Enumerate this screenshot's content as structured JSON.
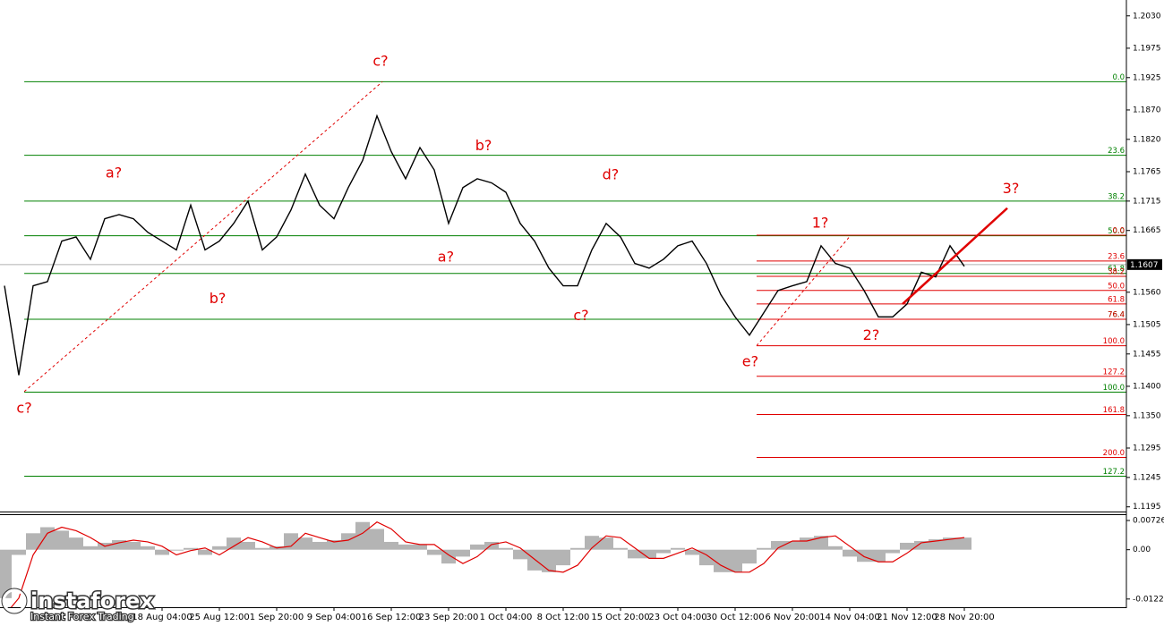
{
  "chart_data": [
    {
      "type": "line",
      "categories": [
        null,
        null,
        null,
        null,
        null,
        null,
        null,
        null,
        null,
        null,
        null,
        "18 Aug 04:00",
        null,
        null,
        null,
        "25 Aug 12:00",
        null,
        null,
        null,
        "1 Sep 20:00",
        null,
        null,
        null,
        "9 Sep 04:00",
        null,
        null,
        null,
        "16 Sep 12:00",
        null,
        null,
        null,
        "23 Sep 20:00",
        null,
        null,
        null,
        "1 Oct 04:00",
        null,
        null,
        null,
        "8 Oct 12:00",
        null,
        null,
        null,
        "15 Oct 20:00",
        null,
        null,
        null,
        "23 Oct 04:00",
        null,
        null,
        null,
        "30 Oct 12:00",
        null,
        null,
        null,
        "6 Nov 20:00",
        null,
        null,
        null,
        "14 Nov 04:00",
        null,
        null,
        null,
        "21 Nov 12:00",
        null,
        null,
        null,
        "28 Nov 20:00"
      ],
      "values": [
        1.1571,
        1.1419,
        1.1571,
        1.1578,
        1.1647,
        1.1654,
        1.1616,
        1.1685,
        1.1692,
        1.1685,
        1.1662,
        1.1647,
        1.1632,
        1.1708,
        1.1632,
        1.1647,
        1.1677,
        1.1715,
        1.1632,
        1.1654,
        1.17,
        1.1761,
        1.1708,
        1.1685,
        1.1738,
        1.1784,
        1.186,
        1.1799,
        1.1753,
        1.1806,
        1.1768,
        1.1677,
        1.1738,
        1.1753,
        1.1746,
        1.173,
        1.1677,
        1.1647,
        1.1601,
        1.1571,
        1.1571,
        1.1632,
        1.1677,
        1.1654,
        1.1609,
        1.1601,
        1.1616,
        1.1639,
        1.1647,
        1.1609,
        1.1556,
        1.1518,
        1.1487,
        1.1525,
        1.1563,
        1.1571,
        1.1578,
        1.1639,
        1.1609,
        1.1601,
        1.1563,
        1.1518,
        1.1518,
        1.154,
        1.1594,
        1.1586,
        1.1639,
        1.1604
      ],
      "color": "#000000",
      "ylim": [
        1.1187,
        1.2057
      ],
      "yticks": [
        {
          "value": 1.203,
          "label": "1.2030"
        },
        1.1975,
        1.1925,
        {
          "value": 1.187,
          "label": "1.1870"
        },
        {
          "value": 1.182,
          "label": "1.1820"
        },
        1.1765,
        1.1715,
        1.1665,
        {
          "value": 1.156,
          "label": "1.1560"
        },
        1.1505,
        1.1455,
        {
          "value": 1.14,
          "label": "1.1400"
        },
        {
          "value": 1.135,
          "label": "1.1350"
        },
        1.1295,
        1.1245,
        1.1195
      ],
      "current_price": 1.1607,
      "fib_levels": [
        {
          "color": "#008000",
          "start": 1.38,
          "levels": [
            {
              "label": "0.0",
              "value": 1.1918
            },
            {
              "label": "23.6",
              "value": 1.1793
            },
            {
              "label": "38.2",
              "value": 1.1715
            },
            {
              "label": "50.0",
              "value": 1.1656
            },
            {
              "label": "61.8",
              "value": 1.1592
            },
            {
              "label": "76.4",
              "value": 1.1514
            },
            {
              "label": "100.0",
              "value": 1.139
            },
            {
              "label": "127.2",
              "value": 1.1247
            }
          ]
        },
        {
          "color": "#e00000",
          "start": 52.5,
          "levels": [
            {
              "label": "0.0",
              "value": 1.1657
            },
            {
              "label": "23.6",
              "value": 1.1613
            },
            {
              "label": "38.2",
              "value": 1.1587
            },
            {
              "label": "50.0",
              "value": 1.1563
            },
            {
              "label": "61.8",
              "value": 1.154
            },
            {
              "label": "76.4",
              "value": 1.1514
            },
            {
              "label": "100.0",
              "value": 1.1469
            },
            {
              "label": "127.2",
              "value": 1.1417
            },
            {
              "label": "161.8",
              "value": 1.1352
            },
            {
              "label": "200.0",
              "value": 1.1279
            }
          ]
        }
      ],
      "lines": [
        {
          "color": "#e00000",
          "style": "dashed",
          "x": [
            1.38,
            26.38
          ],
          "values": [
            1.1391,
            1.1918
          ]
        },
        {
          "color": "#e00000",
          "style": "dashed",
          "x": [
            52.5,
            58.94
          ],
          "values": [
            1.1469,
            1.1653
          ]
        },
        {
          "color": "#e00000",
          "style": "solid",
          "x": [
            62.69,
            70
          ],
          "values": [
            1.154,
            1.1703
          ]
        }
      ],
      "annotation_color": "#e00000",
      "annotations": [
        {
          "text": "c?",
          "x": 1.38,
          "y": 1.1362
        },
        {
          "text": "a?",
          "x": 7.63,
          "y": 1.1762
        },
        {
          "text": "b?",
          "x": 14.88,
          "y": 1.1548
        },
        {
          "text": "c?",
          "x": 26.25,
          "y": 1.1952
        },
        {
          "text": "a?",
          "x": 30.81,
          "y": 1.1619
        },
        {
          "text": "b?",
          "x": 33.44,
          "y": 1.1808
        },
        {
          "text": "c?",
          "x": 40.25,
          "y": 1.1519
        },
        {
          "text": "d?",
          "x": 42.31,
          "y": 1.1759
        },
        {
          "text": "e?",
          "x": 52.06,
          "y": 1.1441
        },
        {
          "text": "1?",
          "x": 56.94,
          "y": 1.1677
        },
        {
          "text": "2?",
          "x": 60.5,
          "y": 1.1486
        },
        {
          "text": "3?",
          "x": 70.25,
          "y": 1.1735
        }
      ]
    },
    {
      "type": "bar",
      "values": [
        -0.01204,
        -0.00129,
        0.00409,
        0.00559,
        0.00473,
        0.00301,
        0.00086,
        0.00172,
        0.00237,
        0.00194,
        0.00086,
        -0.00129,
        -0.00022,
        0.00043,
        -0.00129,
        0.00086,
        0.00301,
        0.00194,
        0.00043,
        0.00086,
        0.00409,
        0.00301,
        0.00194,
        0.00237,
        0.00409,
        0.00688,
        0.00516,
        0.00194,
        0.00129,
        0.00129,
        -0.00129,
        -0.00344,
        -0.00172,
        0.00129,
        0.00194,
        0.00043,
        -0.00237,
        -0.00516,
        -0.00559,
        -0.00387,
        0.00043,
        0.00344,
        0.00301,
        0.00043,
        -0.00215,
        -0.00215,
        -0.00086,
        0.00043,
        -0.00129,
        -0.00387,
        -0.00559,
        -0.00559,
        -0.00344,
        0.00043,
        0.00215,
        0.00215,
        0.00301,
        0.00344,
        0.00086,
        -0.00172,
        -0.00301,
        -0.00301,
        -0.00086,
        0.00172,
        0.00215,
        0.00258,
        0.00301,
        0.00301
      ],
      "color": "#b4b4b4",
      "line_values": [
        -0.01634,
        -0.01204,
        -0.00129,
        0.00409,
        0.00559,
        0.00473,
        0.00301,
        0.00086,
        0.00172,
        0.00237,
        0.00194,
        0.00086,
        -0.00129,
        -0.00022,
        0.00043,
        -0.00129,
        0.00086,
        0.00301,
        0.00194,
        0.00043,
        0.00086,
        0.00409,
        0.00301,
        0.00194,
        0.00237,
        0.00409,
        0.00688,
        0.00516,
        0.00194,
        0.00129,
        0.00129,
        -0.00129,
        -0.00344,
        -0.00172,
        0.00129,
        0.00194,
        0.00043,
        -0.00237,
        -0.00516,
        -0.00559,
        -0.00387,
        0.00043,
        0.00344,
        0.00301,
        0.00043,
        -0.00215,
        -0.00215,
        -0.00086,
        0.00043,
        -0.00129,
        -0.00387,
        -0.00559,
        -0.00559,
        -0.00344,
        0.00043,
        0.00215,
        0.00215,
        0.00301,
        0.00344,
        0.00086,
        -0.00172,
        -0.00301,
        -0.00301,
        -0.00086,
        0.00172,
        0.00215,
        0.00258,
        0.00301
      ],
      "line_color": "#e00000",
      "ylim": [
        -0.0143,
        0.0086
      ],
      "yticks": [
        0.00726,
        {
          "value": 0,
          "label": "0.00"
        },
        -0.01226
      ]
    }
  ],
  "branding": {
    "name": "instaforex",
    "tagline": "Instant Forex Trading"
  }
}
